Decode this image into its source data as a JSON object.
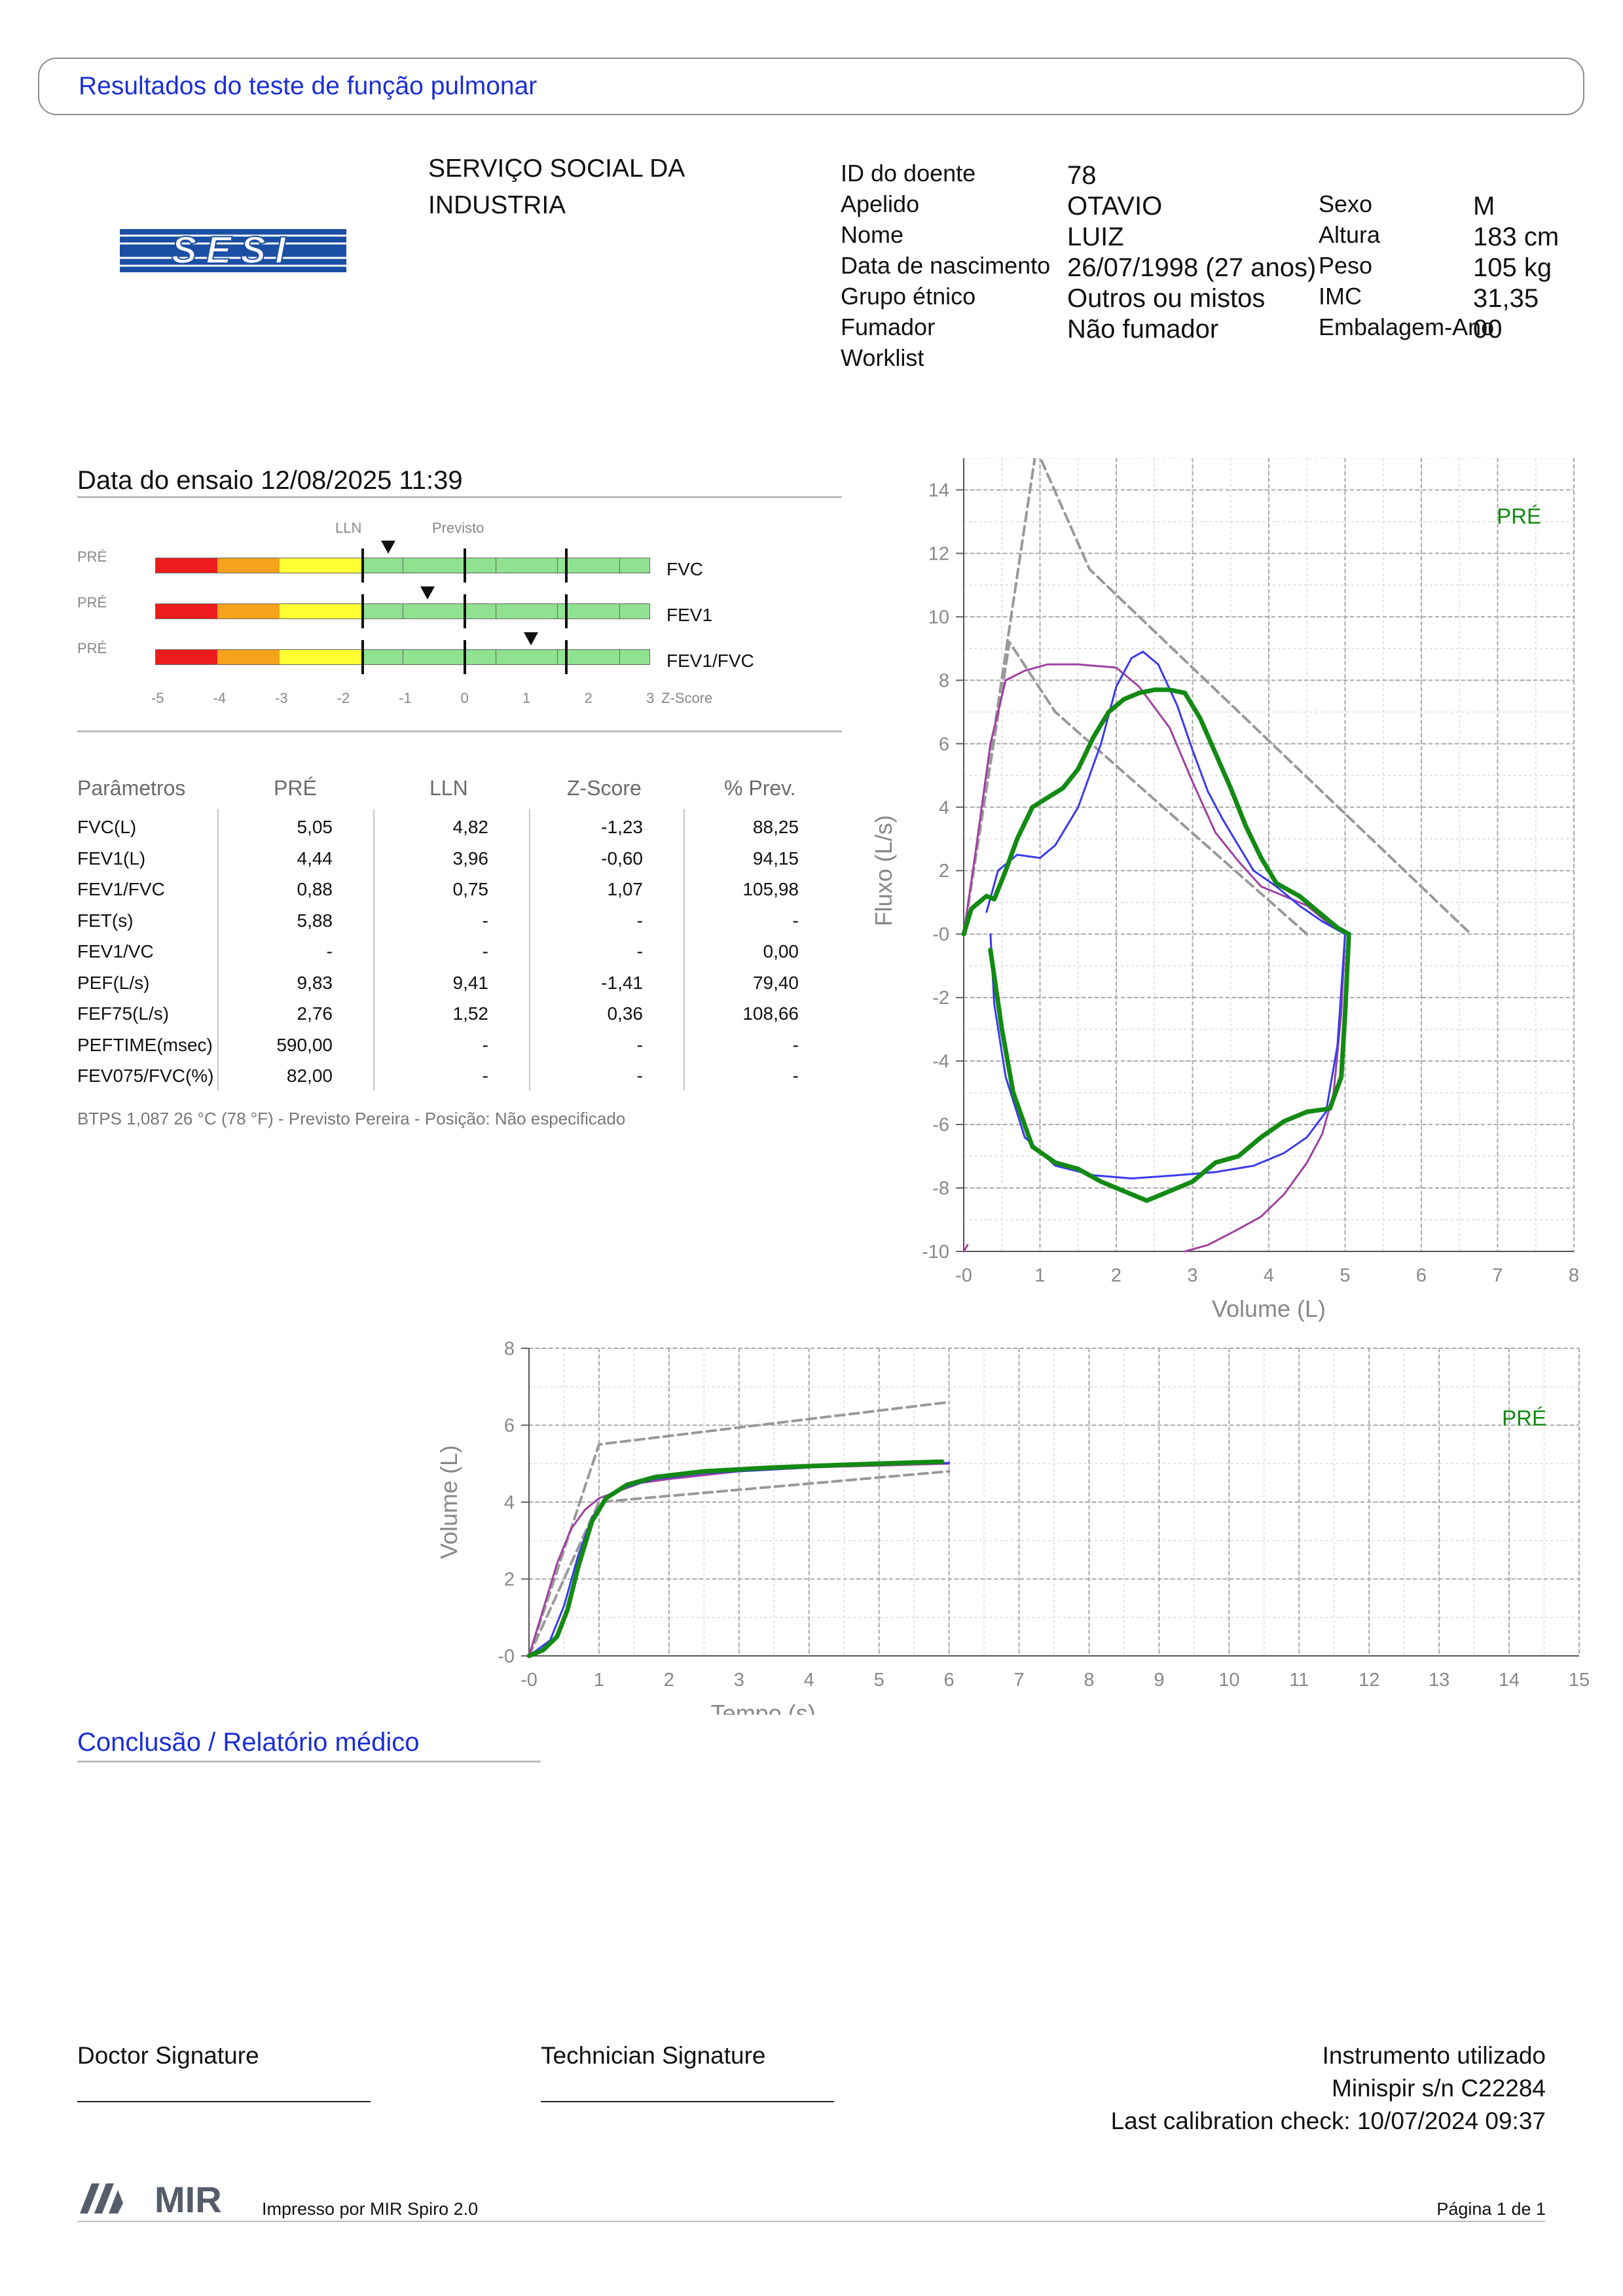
{
  "header": {
    "title": "Resultados do teste de função pulmonar"
  },
  "logo": {
    "text": "SESI"
  },
  "organization": {
    "name": "SERVIÇO SOCIAL DA INDUSTRIA"
  },
  "patient": {
    "left": [
      {
        "label": "ID do doente",
        "value": "78"
      },
      {
        "label": "Apelido",
        "value": "OTAVIO"
      },
      {
        "label": "Nome",
        "value": "LUIZ"
      },
      {
        "label": "Data de nascimento",
        "value": "26/07/1998 (27 anos)"
      },
      {
        "label": "Grupo étnico",
        "value": "Outros ou mistos"
      },
      {
        "label": "Fumador",
        "value": "Não fumador"
      },
      {
        "label": "Worklist",
        "value": ""
      }
    ],
    "right": [
      {
        "label": "Sexo",
        "value": "M"
      },
      {
        "label": "Altura",
        "value": "183 cm"
      },
      {
        "label": "Peso",
        "value": "105 kg"
      },
      {
        "label": "IMC",
        "value": "31,35"
      },
      {
        "label": "Embalagem-Ano",
        "value": "00"
      }
    ]
  },
  "test": {
    "date_label": "Data do ensaio 12/08/2025 11:39"
  },
  "zscore": {
    "lln_label": "LLN",
    "predicted_label": "Previsto",
    "phase_label": "PRÉ",
    "axis_label": "Z-Score",
    "ticks": [
      "-5",
      "-4",
      "-3",
      "-2",
      "-1",
      "0",
      "1",
      "2",
      "3"
    ],
    "bars": [
      {
        "name": "FVC",
        "zscore": -1.23
      },
      {
        "name": "FEV1",
        "zscore": -0.6
      },
      {
        "name": "FEV1/FVC",
        "zscore": 1.07
      }
    ],
    "colors": {
      "red": "#ee1c1c",
      "orange": "#f7a21b",
      "yellow": "#ffff33",
      "green": "#8fe28f"
    }
  },
  "table": {
    "headers": [
      "Parâmetros",
      "PRÉ",
      "LLN",
      "Z-Score",
      "% Prev."
    ],
    "rows": [
      [
        "FVC(L)",
        "5,05",
        "4,82",
        "-1,23",
        "88,25"
      ],
      [
        "FEV1(L)",
        "4,44",
        "3,96",
        "-0,60",
        "94,15"
      ],
      [
        "FEV1/FVC",
        "0,88",
        "0,75",
        "1,07",
        "105,98"
      ],
      [
        "FET(s)",
        "5,88",
        "-",
        "-",
        "-"
      ],
      [
        "FEV1/VC",
        "-",
        "-",
        "-",
        "0,00"
      ],
      [
        "PEF(L/s)",
        "9,83",
        "9,41",
        "-1,41",
        "79,40"
      ],
      [
        "FEF75(L/s)",
        "2,76",
        "1,52",
        "0,36",
        "108,66"
      ],
      [
        "PEFTIME(msec)",
        "590,00",
        "-",
        "-",
        "-"
      ],
      [
        "FEV075/FVC(%)",
        "82,00",
        "-",
        "-",
        "-"
      ]
    ]
  },
  "btps_note": "BTPS 1,087 26 °C (78 °F) - Previsto Pereira - Posição: Não especificado",
  "chart_data": [
    {
      "type": "line",
      "ylabel": "Fluxo (L/s)",
      "xlabel": "Volume (L)",
      "legend": "PRÉ",
      "xlim": [
        0,
        8
      ],
      "ylim": [
        -10,
        15
      ],
      "xticks": [
        "-0",
        "1",
        "2",
        "3",
        "4",
        "5",
        "6",
        "7",
        "8"
      ],
      "yticks": [
        "-10",
        "-8",
        "-6",
        "-4",
        "-2",
        "-0",
        "2",
        "4",
        "6",
        "8",
        "10",
        "12",
        "14"
      ],
      "series": [
        {
          "color": "#999999",
          "dashed": true,
          "x": [
            0,
            0.95,
            1.65,
            6.65
          ],
          "y": [
            0,
            15.3,
            11.5,
            0
          ]
        },
        {
          "color": "#999999",
          "dashed": true,
          "x": [
            0,
            0.6,
            1.2,
            4.5
          ],
          "y": [
            0,
            9.2,
            7.0,
            0
          ]
        },
        {
          "color": "#a040a0",
          "x": [
            0,
            0.15,
            0.35,
            0.55,
            0.8,
            1.1,
            1.5,
            2.0,
            2.3,
            2.7,
            3.0,
            3.3,
            3.6,
            3.9,
            4.2,
            4.5,
            4.8,
            5.0
          ],
          "y": [
            0,
            2.5,
            6.0,
            8.0,
            8.3,
            8.5,
            8.5,
            8.4,
            7.8,
            6.5,
            4.8,
            3.2,
            2.3,
            1.5,
            1.2,
            0.9,
            0.3,
            0
          ]
        },
        {
          "color": "#a040a0",
          "x": [
            5.0,
            4.95,
            4.85,
            4.7,
            4.5,
            4.2,
            3.9,
            3.6,
            3.2,
            2.9
          ],
          "y": [
            0,
            -2.5,
            -5.0,
            -6.3,
            -7.2,
            -8.2,
            -8.9,
            -9.3,
            -9.8,
            -10
          ]
        },
        {
          "color": "#a040a0",
          "x": [
            0.05,
            0.0
          ],
          "y": [
            -9.8,
            -10
          ]
        },
        {
          "color": "#3a3af0",
          "x": [
            0.3,
            0.45,
            0.7,
            1.0,
            1.2,
            1.5,
            1.8,
            2.0,
            2.2,
            2.35,
            2.55,
            2.8,
            3.0,
            3.2,
            3.4,
            3.6,
            3.8,
            4.1,
            4.4,
            4.7,
            5.0
          ],
          "y": [
            0.7,
            2.0,
            2.5,
            2.4,
            2.8,
            4.0,
            6.0,
            7.8,
            8.7,
            8.9,
            8.5,
            7.2,
            5.8,
            4.5,
            3.6,
            2.8,
            2.0,
            1.5,
            0.9,
            0.4,
            0
          ]
        },
        {
          "color": "#3a3af0",
          "x": [
            5.0,
            4.9,
            4.75,
            4.5,
            4.2,
            3.8,
            3.3,
            2.8,
            2.2,
            1.7,
            1.2,
            0.8,
            0.55,
            0.4,
            0.35
          ],
          "y": [
            0,
            -3.5,
            -5.6,
            -6.4,
            -6.9,
            -7.3,
            -7.5,
            -7.6,
            -7.7,
            -7.6,
            -7.3,
            -6.4,
            -4.5,
            -2.2,
            0
          ]
        },
        {
          "color": "#138a13",
          "x": [
            0.0,
            0.1,
            0.2,
            0.3,
            0.4,
            0.55,
            0.7,
            0.9,
            1.1,
            1.3,
            1.5,
            1.7,
            1.9,
            2.1,
            2.3,
            2.5,
            2.7,
            2.9,
            3.1,
            3.3,
            3.5,
            3.7,
            3.9,
            4.1,
            4.4,
            4.7,
            4.9,
            5.05
          ],
          "y": [
            0,
            0.8,
            1.0,
            1.2,
            1.1,
            2.0,
            3.0,
            4.0,
            4.3,
            4.6,
            5.2,
            6.2,
            7.0,
            7.4,
            7.6,
            7.7,
            7.7,
            7.6,
            6.8,
            5.7,
            4.6,
            3.4,
            2.4,
            1.6,
            1.2,
            0.6,
            0.2,
            0
          ]
        },
        {
          "color": "#138a13",
          "x": [
            5.05,
            5.0,
            4.95,
            4.8,
            4.5,
            4.2,
            3.9,
            3.6,
            3.3,
            3.0,
            2.7,
            2.4,
            2.1,
            1.8,
            1.5,
            1.2,
            0.9,
            0.65,
            0.5,
            0.35
          ],
          "y": [
            0,
            -2.5,
            -4.5,
            -5.5,
            -5.6,
            -5.9,
            -6.4,
            -7.0,
            -7.2,
            -7.8,
            -8.1,
            -8.4,
            -8.1,
            -7.8,
            -7.4,
            -7.2,
            -6.7,
            -5.0,
            -3.0,
            -0.5
          ]
        }
      ]
    },
    {
      "type": "line",
      "ylabel": "Volume (L)",
      "xlabel": "Tempo (s)",
      "legend": "PRÉ",
      "xlim": [
        0,
        15
      ],
      "ylim": [
        0,
        8
      ],
      "xticks": [
        "-0",
        "1",
        "2",
        "3",
        "4",
        "5",
        "6",
        "7",
        "8",
        "9",
        "10",
        "11",
        "12",
        "13",
        "14",
        "15"
      ],
      "yticks": [
        "-0",
        "2",
        "4",
        "6",
        "8"
      ],
      "series": [
        {
          "color": "#999999",
          "dashed": true,
          "x": [
            0,
            1.0,
            6.0
          ],
          "y": [
            0,
            5.5,
            6.6
          ]
        },
        {
          "color": "#999999",
          "dashed": true,
          "x": [
            0,
            1.0,
            6.0
          ],
          "y": [
            0,
            4.0,
            4.8
          ]
        },
        {
          "color": "#a040a0",
          "x": [
            0,
            0.2,
            0.4,
            0.6,
            0.8,
            1.0,
            1.3,
            1.6,
            2.0,
            3.0,
            4.0,
            5.0,
            6.0
          ],
          "y": [
            0,
            1.2,
            2.4,
            3.3,
            3.8,
            4.1,
            4.3,
            4.5,
            4.6,
            4.8,
            4.9,
            4.95,
            5.0
          ]
        },
        {
          "color": "#3a3af0",
          "x": [
            0,
            0.3,
            0.5,
            0.7,
            0.9,
            1.1,
            1.4,
            1.8,
            2.5,
            3.5,
            4.5,
            5.5,
            6.0
          ],
          "y": [
            0,
            0.4,
            1.3,
            2.6,
            3.6,
            4.1,
            4.4,
            4.6,
            4.75,
            4.85,
            4.95,
            5.0,
            5.02
          ]
        },
        {
          "color": "#138a13",
          "x": [
            0,
            0.2,
            0.4,
            0.55,
            0.7,
            0.9,
            1.1,
            1.4,
            1.8,
            2.5,
            3.5,
            4.5,
            5.5,
            5.9
          ],
          "y": [
            0,
            0.15,
            0.5,
            1.2,
            2.3,
            3.5,
            4.1,
            4.45,
            4.65,
            4.8,
            4.9,
            4.97,
            5.03,
            5.05
          ]
        }
      ]
    }
  ],
  "conclusion": {
    "title": "Conclusão / Relatório médico"
  },
  "signatures": {
    "doctor": "Doctor Signature",
    "technician": "Technician Signature"
  },
  "instrument": {
    "label": "Instrumento utilizado",
    "device": "Minispir s/n C22284",
    "calibration": "Last calibration check: 10/07/2024 09:37"
  },
  "footer": {
    "brand": "MIR",
    "printed_by": "Impresso por MIR Spiro 2.0",
    "page": "Página 1 de 1"
  }
}
